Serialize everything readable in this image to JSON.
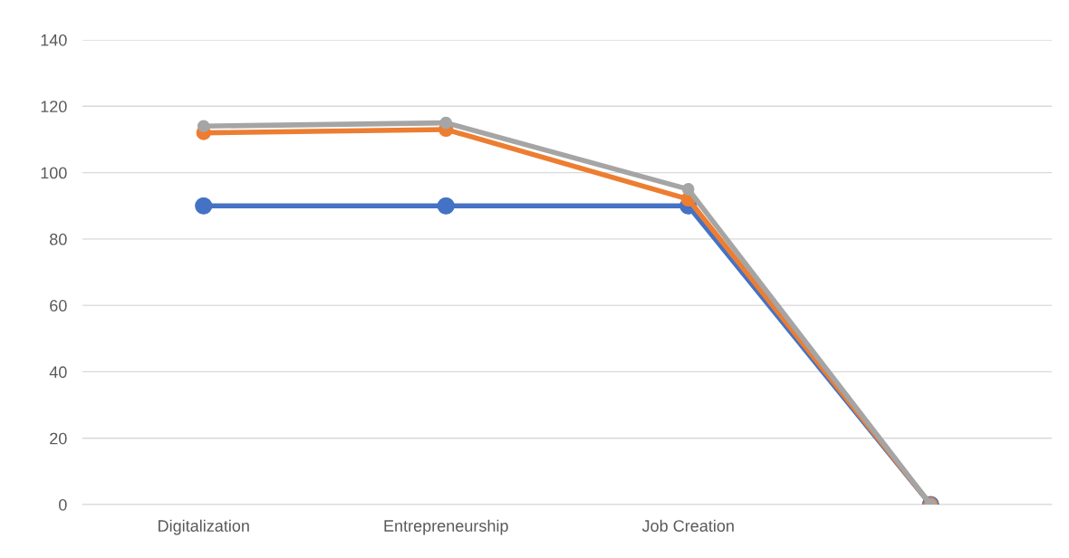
{
  "chart_data": {
    "type": "line",
    "categories": [
      "Digitalization",
      "Entrepreneurship",
      "Job Creation",
      null
    ],
    "series": [
      {
        "color": "#4472c4",
        "values": [
          90,
          90,
          90,
          0
        ]
      },
      {
        "color": "#ed7d31",
        "values": [
          112,
          113,
          92,
          0
        ]
      },
      {
        "color": "#a5a5a5",
        "values": [
          114,
          115,
          95,
          0
        ]
      }
    ],
    "ylim": [
      0,
      140
    ],
    "yticks": [
      0,
      20,
      40,
      60,
      80,
      100,
      120,
      140
    ],
    "grid": "y",
    "marker": "circle",
    "line_style": "solid"
  }
}
